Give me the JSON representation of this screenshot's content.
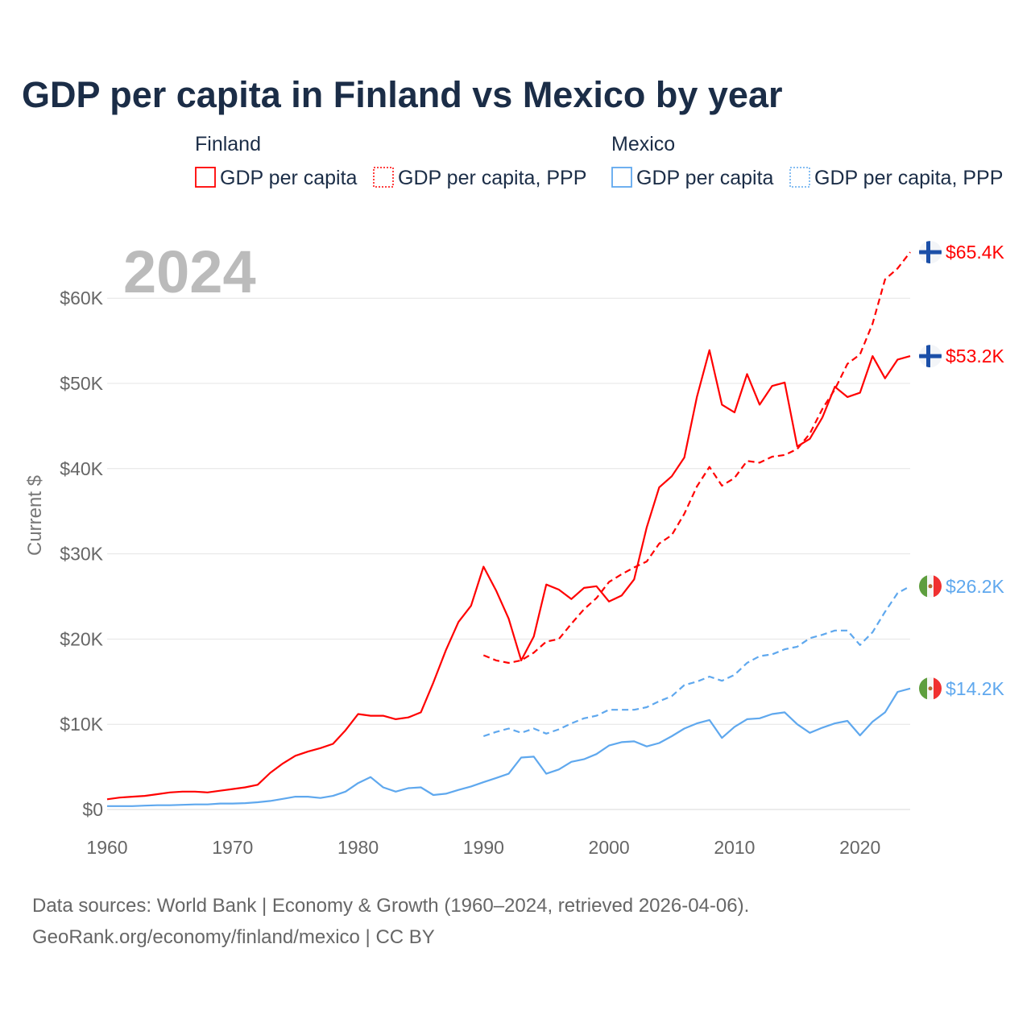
{
  "chart_data": {
    "type": "line",
    "title": "GDP per capita in Finland vs Mexico by year",
    "ylabel": "Current $",
    "xlabel": "",
    "year_watermark": "2024",
    "xlim": [
      1960,
      2024
    ],
    "ylim": [
      0,
      65000
    ],
    "grid": true,
    "legend_placement": "top",
    "x_ticks": [
      "1960",
      "1970",
      "1980",
      "1990",
      "2000",
      "2010",
      "2020"
    ],
    "x_tick_values": [
      1960,
      1970,
      1980,
      1990,
      2000,
      2010,
      2020
    ],
    "y_ticks": [
      "$0",
      "$10K",
      "$20K",
      "$30K",
      "$40K",
      "$50K",
      "$60K"
    ],
    "y_tick_values": [
      0,
      10000,
      20000,
      30000,
      40000,
      50000,
      60000
    ],
    "legend_groups": [
      {
        "name": "Finland",
        "entries": [
          "GDP per capita",
          "GDP per capita, PPP"
        ]
      },
      {
        "name": "Mexico",
        "entries": [
          "GDP per capita",
          "GDP per capita, PPP"
        ]
      }
    ],
    "series": [
      {
        "name": "Finland GDP per capita",
        "country": "Finland",
        "color": "#ff0000",
        "dash": false,
        "start": 1960,
        "end_label": "$53.2K",
        "values_k": [
          1.2,
          1.4,
          1.5,
          1.6,
          1.8,
          2.0,
          2.1,
          2.1,
          2.0,
          2.2,
          2.4,
          2.6,
          2.9,
          4.3,
          5.4,
          6.3,
          6.8,
          7.2,
          7.7,
          9.3,
          11.2,
          11.0,
          11.0,
          10.6,
          10.8,
          11.4,
          14.9,
          18.7,
          22.0,
          23.9,
          28.5,
          25.7,
          22.4,
          17.5,
          20.3,
          26.4,
          25.8,
          24.7,
          26.0,
          26.2,
          24.4,
          25.1,
          27.0,
          33.1,
          37.8,
          39.1,
          41.3,
          48.4,
          53.9,
          47.5,
          46.6,
          51.1,
          47.5,
          49.7,
          50.1,
          42.6,
          43.5,
          46.0,
          49.6,
          48.4,
          48.9,
          53.2,
          50.6,
          52.8,
          53.2
        ]
      },
      {
        "name": "Finland GDP per capita, PPP",
        "country": "Finland",
        "color": "#ff0000",
        "dash": true,
        "start": 1990,
        "end_label": "$65.4K",
        "values_k": [
          18.1,
          17.5,
          17.2,
          17.5,
          18.4,
          19.7,
          20.0,
          21.8,
          23.5,
          24.8,
          26.7,
          27.6,
          28.4,
          29.1,
          31.2,
          32.2,
          34.7,
          37.9,
          40.2,
          38.0,
          38.9,
          40.9,
          40.7,
          41.4,
          41.6,
          42.3,
          44.1,
          47.0,
          49.3,
          52.3,
          53.4,
          57.0,
          62.2,
          63.5,
          65.4
        ]
      },
      {
        "name": "Mexico GDP per capita",
        "country": "Mexico",
        "color": "#5fa8ee",
        "dash": false,
        "start": 1960,
        "end_label": "$14.2K",
        "values_k": [
          0.4,
          0.4,
          0.4,
          0.45,
          0.5,
          0.5,
          0.55,
          0.6,
          0.6,
          0.7,
          0.7,
          0.75,
          0.85,
          1.0,
          1.25,
          1.5,
          1.5,
          1.35,
          1.6,
          2.1,
          3.1,
          3.8,
          2.6,
          2.1,
          2.5,
          2.6,
          1.7,
          1.85,
          2.3,
          2.7,
          3.2,
          3.7,
          4.2,
          6.1,
          6.2,
          4.2,
          4.7,
          5.6,
          5.9,
          6.5,
          7.5,
          7.9,
          8.0,
          7.4,
          7.8,
          8.6,
          9.5,
          10.1,
          10.5,
          8.4,
          9.7,
          10.6,
          10.7,
          11.2,
          11.4,
          10.0,
          9.0,
          9.6,
          10.1,
          10.4,
          8.7,
          10.3,
          11.4,
          13.8,
          14.2
        ]
      },
      {
        "name": "Mexico GDP per capita, PPP",
        "country": "Mexico",
        "color": "#5fa8ee",
        "dash": true,
        "start": 1990,
        "end_label": "$26.2K",
        "values_k": [
          8.6,
          9.1,
          9.5,
          9.0,
          9.5,
          8.9,
          9.4,
          10.1,
          10.7,
          11.0,
          11.7,
          11.7,
          11.7,
          12.0,
          12.7,
          13.3,
          14.6,
          15.0,
          15.6,
          15.1,
          15.8,
          17.2,
          18.0,
          18.2,
          18.8,
          19.1,
          20.1,
          20.5,
          21.0,
          21.0,
          19.3,
          20.8,
          23.2,
          25.4,
          26.2
        ]
      }
    ]
  },
  "footer": {
    "line1": "Data sources: World Bank | Economy & Growth (1960–2024, retrieved 2026-04-06).",
    "line2": "GeoRank.org/economy/finland/mexico | CC BY"
  }
}
